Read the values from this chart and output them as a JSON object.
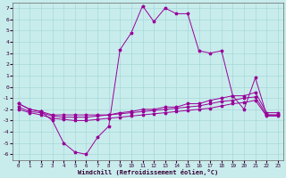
{
  "xlabel": "Windchill (Refroidissement éolien,°C)",
  "background_color": "#c8ecec",
  "grid_color": "#a8d8d8",
  "line_color": "#990099",
  "xlim": [
    -0.5,
    23.5
  ],
  "ylim": [
    -6.5,
    7.5
  ],
  "yticks": [
    -6,
    -5,
    -4,
    -3,
    -2,
    -1,
    0,
    1,
    2,
    3,
    4,
    5,
    6,
    7
  ],
  "xticks": [
    0,
    1,
    2,
    3,
    4,
    5,
    6,
    7,
    8,
    9,
    10,
    11,
    12,
    13,
    14,
    15,
    16,
    17,
    18,
    19,
    20,
    21,
    22,
    23
  ],
  "series1_x": [
    0,
    1,
    2,
    3,
    4,
    5,
    6,
    7,
    8,
    9,
    10,
    11,
    12,
    13,
    14,
    15,
    16,
    17,
    18,
    19,
    20,
    21,
    22,
    23
  ],
  "series1_y": [
    -1.5,
    -2.0,
    -2.2,
    -3.0,
    -5.0,
    -5.8,
    -6.0,
    -4.5,
    -3.5,
    3.3,
    4.8,
    7.2,
    5.8,
    7.0,
    6.5,
    6.5,
    3.2,
    3.0,
    3.2,
    -0.8,
    -2.0,
    0.8,
    -2.5,
    -2.5
  ],
  "series2_x": [
    0,
    1,
    2,
    3,
    4,
    5,
    6,
    7,
    8,
    9,
    10,
    11,
    12,
    13,
    14,
    15,
    16,
    17,
    18,
    19,
    20,
    21,
    22,
    23
  ],
  "series2_y": [
    -1.5,
    -2.0,
    -2.2,
    -2.5,
    -2.5,
    -2.5,
    -2.5,
    -2.5,
    -2.5,
    -2.3,
    -2.2,
    -2.0,
    -2.0,
    -1.8,
    -1.8,
    -1.5,
    -1.5,
    -1.2,
    -1.0,
    -0.8,
    -0.8,
    -0.5,
    -2.3,
    -2.3
  ],
  "series3_x": [
    0,
    1,
    2,
    3,
    4,
    5,
    6,
    7,
    8,
    9,
    10,
    11,
    12,
    13,
    14,
    15,
    16,
    17,
    18,
    19,
    20,
    21,
    22,
    23
  ],
  "series3_y": [
    -1.8,
    -2.2,
    -2.3,
    -2.6,
    -2.7,
    -2.7,
    -2.7,
    -2.6,
    -2.5,
    -2.4,
    -2.3,
    -2.2,
    -2.1,
    -2.0,
    -1.9,
    -1.8,
    -1.7,
    -1.5,
    -1.3,
    -1.2,
    -1.0,
    -0.9,
    -2.5,
    -2.5
  ],
  "series4_x": [
    0,
    1,
    2,
    3,
    4,
    5,
    6,
    7,
    8,
    9,
    10,
    11,
    12,
    13,
    14,
    15,
    16,
    17,
    18,
    19,
    20,
    21,
    22,
    23
  ],
  "series4_y": [
    -2.0,
    -2.3,
    -2.5,
    -2.8,
    -2.9,
    -3.0,
    -3.0,
    -2.9,
    -2.8,
    -2.7,
    -2.6,
    -2.5,
    -2.4,
    -2.3,
    -2.2,
    -2.1,
    -2.0,
    -1.9,
    -1.7,
    -1.5,
    -1.4,
    -1.2,
    -2.6,
    -2.6
  ]
}
